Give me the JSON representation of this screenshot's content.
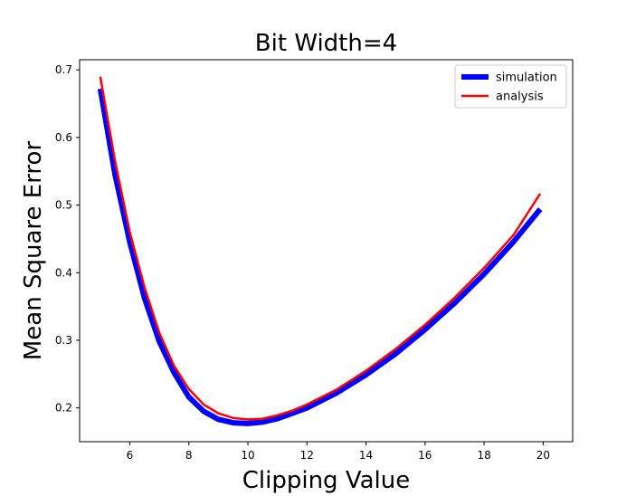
{
  "chart_data": {
    "type": "line",
    "title": "Bit Width=4",
    "xlabel": "Clipping Value",
    "ylabel": "Mean Square Error",
    "xlim": [
      4.3,
      21.0
    ],
    "ylim": [
      0.15,
      0.715
    ],
    "xticks": [
      6,
      8,
      10,
      12,
      14,
      16,
      18,
      20
    ],
    "yticks": [
      0.2,
      0.3,
      0.4,
      0.5,
      0.6,
      0.7
    ],
    "ytick_labels": [
      "0.2",
      "0.3",
      "0.4",
      "0.5",
      "0.6",
      "0.7"
    ],
    "xtick_labels": [
      "6",
      "8",
      "10",
      "12",
      "14",
      "16",
      "18",
      "20"
    ],
    "grid": false,
    "legend_position": "top-right",
    "series": [
      {
        "name": "simulation",
        "color": "#0000ff",
        "x": [
          5.0,
          5.5,
          6.0,
          6.5,
          7.0,
          7.5,
          8.0,
          8.5,
          9.0,
          9.5,
          10.0,
          10.5,
          11.0,
          11.5,
          12.0,
          13.0,
          14.0,
          15.0,
          16.0,
          17.0,
          18.0,
          19.0,
          19.9
        ],
        "y": [
          0.672,
          0.545,
          0.445,
          0.362,
          0.298,
          0.252,
          0.216,
          0.195,
          0.183,
          0.178,
          0.177,
          0.179,
          0.184,
          0.192,
          0.2,
          0.222,
          0.249,
          0.28,
          0.316,
          0.355,
          0.398,
          0.446,
          0.494
        ]
      },
      {
        "name": "analysis",
        "color": "#ff0000",
        "x": [
          5.0,
          5.5,
          6.0,
          6.5,
          7.0,
          7.5,
          8.0,
          8.5,
          9.0,
          9.5,
          10.0,
          10.5,
          11.0,
          11.5,
          12.0,
          13.0,
          14.0,
          15.0,
          16.0,
          17.0,
          18.0,
          19.0,
          19.9
        ],
        "y": [
          0.69,
          0.565,
          0.46,
          0.378,
          0.311,
          0.262,
          0.228,
          0.205,
          0.192,
          0.185,
          0.183,
          0.184,
          0.189,
          0.196,
          0.205,
          0.227,
          0.255,
          0.287,
          0.323,
          0.363,
          0.407,
          0.456,
          0.517
        ]
      }
    ]
  }
}
